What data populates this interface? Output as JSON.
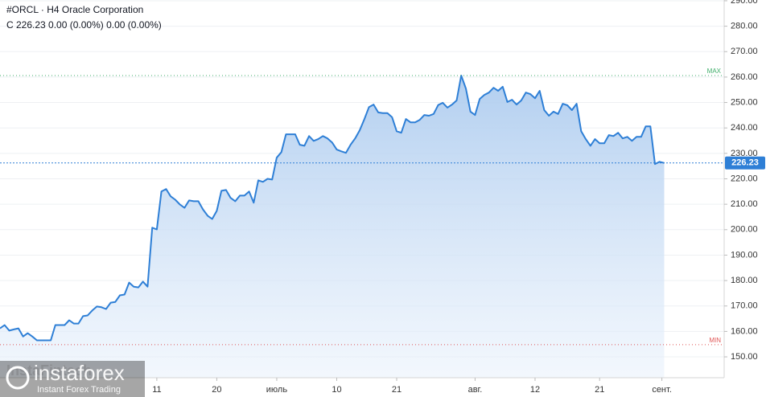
{
  "chart_data": {
    "type": "area",
    "title": "#ORCL · H4 Oracle Corporation",
    "subtitle": "C 226.23 0.00 (0.00%) 0.00 (0.00%)",
    "series": [
      {
        "name": "#ORCL",
        "color": "#2e7fd6",
        "values": [
          161.2,
          162.5,
          160.3,
          160.8,
          161.2,
          158,
          159.3,
          158,
          156.5,
          156.5,
          156.5,
          156.5,
          162.5,
          162.5,
          162.5,
          164.4,
          163.1,
          163.1,
          166,
          166.3,
          168.2,
          169.8,
          169.5,
          168.8,
          171.3,
          171.6,
          174.2,
          174.5,
          179.2,
          177.6,
          177.3,
          179.6,
          177.6,
          200.8,
          200.1,
          215,
          216,
          213.1,
          211.8,
          209.9,
          208.6,
          211.5,
          211.2,
          211.2,
          208,
          205.5,
          204.2,
          207.4,
          215.3,
          215.6,
          212.5,
          211.2,
          213.4,
          213.4,
          215,
          210.6,
          219.4,
          218.8,
          220,
          219.7,
          228.3,
          230.5,
          237.5,
          237.5,
          237.5,
          233.4,
          233,
          236.8,
          234.9,
          235.6,
          236.8,
          235.9,
          234.3,
          231.5,
          230.8,
          230.2,
          233.4,
          235.9,
          239.1,
          243.5,
          248.2,
          249.2,
          246.1,
          245.8,
          245.8,
          244.2,
          238.7,
          238.1,
          243.5,
          242.2,
          242.2,
          243.2,
          245.1,
          244.8,
          245.5,
          249,
          249.9,
          248,
          249.2,
          250.8,
          260.6,
          255.5,
          246.4,
          245.1,
          251.4,
          253,
          253.9,
          255.8,
          254.6,
          256.2,
          250.2,
          251.1,
          249.2,
          250.8,
          253.9,
          253.3,
          251.7,
          254.6,
          247,
          244.8,
          246.4,
          245.5,
          249.5,
          248.9,
          247,
          249.5,
          238.7,
          235.6,
          233,
          235.6,
          234,
          234,
          237.2,
          236.8,
          238.1,
          235.9,
          236.5,
          234.9,
          236.5,
          236.5,
          240.6,
          240.6,
          225.8,
          226.7,
          226.23
        ]
      }
    ],
    "xlim": [
      0,
      157
    ],
    "xticks": [
      {
        "value": 34,
        "label": "11"
      },
      {
        "value": 47,
        "label": "20"
      },
      {
        "value": 60,
        "label": "июль"
      },
      {
        "value": 73,
        "label": "10"
      },
      {
        "value": 86,
        "label": "21"
      },
      {
        "value": 103,
        "label": "авг."
      },
      {
        "value": 116,
        "label": "12"
      },
      {
        "value": 130,
        "label": "21"
      },
      {
        "value": 143.5,
        "label": "сент."
      }
    ],
    "ylim": [
      141.8,
      290.3
    ],
    "yticks": [
      {
        "value": 150,
        "label": "150.00"
      },
      {
        "value": 160,
        "label": "160.00"
      },
      {
        "value": 170,
        "label": "170.00"
      },
      {
        "value": 180,
        "label": "180.00"
      },
      {
        "value": 190,
        "label": "190.00"
      },
      {
        "value": 200,
        "label": "200.00"
      },
      {
        "value": 210,
        "label": "210.00"
      },
      {
        "value": 220,
        "label": "220.00"
      },
      {
        "value": 230,
        "label": "230.00"
      },
      {
        "value": 240,
        "label": "240.00"
      },
      {
        "value": 250,
        "label": "250.00"
      },
      {
        "value": 260,
        "label": "260.00"
      },
      {
        "value": 270,
        "label": "270.00"
      },
      {
        "value": 280,
        "label": "280.00"
      },
      {
        "value": 290,
        "label": "290.00"
      }
    ],
    "grid": true,
    "last_price": {
      "value": 226.23,
      "label": "226.23",
      "color": "#2e7fd6"
    },
    "max_line": {
      "value": 260.6,
      "label": "MAX",
      "color": "#3fae6a"
    },
    "min_line": {
      "value": 154.8,
      "label": "MIN",
      "color": "#e05555"
    },
    "watermark": {
      "brand": "instaforex",
      "tagline": "Instant Forex Trading",
      "provider": "InstaFintech"
    }
  }
}
